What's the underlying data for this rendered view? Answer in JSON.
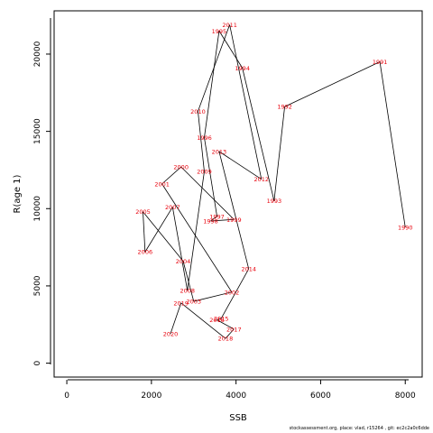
{
  "chart_data": {
    "type": "line",
    "title": "",
    "xlabel": "SSB",
    "ylabel": "R(age 1)",
    "xlim": [
      -300,
      8400
    ],
    "ylim": [
      -900,
      22800
    ],
    "xticks": [
      0,
      2000,
      4000,
      6000,
      8000
    ],
    "yticks": [
      0,
      5000,
      10000,
      15000,
      20000
    ],
    "grid": false,
    "series": [
      {
        "points": [
          {
            "year": "1990",
            "x": 8000,
            "y": 8800
          },
          {
            "year": "1991",
            "x": 7400,
            "y": 19500
          },
          {
            "year": "1992",
            "x": 5150,
            "y": 16600
          },
          {
            "year": "1993",
            "x": 4900,
            "y": 10500
          },
          {
            "year": "1994",
            "x": 4150,
            "y": 19100
          },
          {
            "year": "1995",
            "x": 3600,
            "y": 21500
          },
          {
            "year": "1996",
            "x": 3250,
            "y": 14600
          },
          {
            "year": "1997",
            "x": 3550,
            "y": 9500
          },
          {
            "year": "1998",
            "x": 3400,
            "y": 9200
          },
          {
            "year": "1999",
            "x": 3950,
            "y": 9300
          },
          {
            "year": "2000",
            "x": 2700,
            "y": 12700
          },
          {
            "year": "2001",
            "x": 2250,
            "y": 11600
          },
          {
            "year": "2002",
            "x": 3900,
            "y": 4600
          },
          {
            "year": "2003",
            "x": 3000,
            "y": 4000
          },
          {
            "year": "2004",
            "x": 2750,
            "y": 6600
          },
          {
            "year": "2005",
            "x": 1800,
            "y": 9800
          },
          {
            "year": "2006",
            "x": 1850,
            "y": 7200
          },
          {
            "year": "2007",
            "x": 2500,
            "y": 10100
          },
          {
            "year": "2008",
            "x": 2850,
            "y": 4700
          },
          {
            "year": "2009",
            "x": 3250,
            "y": 12400
          },
          {
            "year": "2010",
            "x": 3100,
            "y": 16300
          },
          {
            "year": "2011",
            "x": 3850,
            "y": 21900
          },
          {
            "year": "2012",
            "x": 4600,
            "y": 11900
          },
          {
            "year": "2013",
            "x": 3600,
            "y": 13700
          },
          {
            "year": "2014",
            "x": 4300,
            "y": 6100
          },
          {
            "year": "2015",
            "x": 3650,
            "y": 2900
          },
          {
            "year": "2016",
            "x": 3550,
            "y": 2800
          },
          {
            "year": "2017",
            "x": 3950,
            "y": 2200
          },
          {
            "year": "2018",
            "x": 3750,
            "y": 1600
          },
          {
            "year": "2019",
            "x": 2700,
            "y": 3900
          },
          {
            "year": "2020",
            "x": 2450,
            "y": 1900
          }
        ]
      }
    ]
  },
  "footer": {
    "text": "stockassessment.org, place: vlad, r15264 , git: ec2c2a0c6dde"
  },
  "colors": {
    "line": "#000000",
    "labels": "#e8000b"
  }
}
